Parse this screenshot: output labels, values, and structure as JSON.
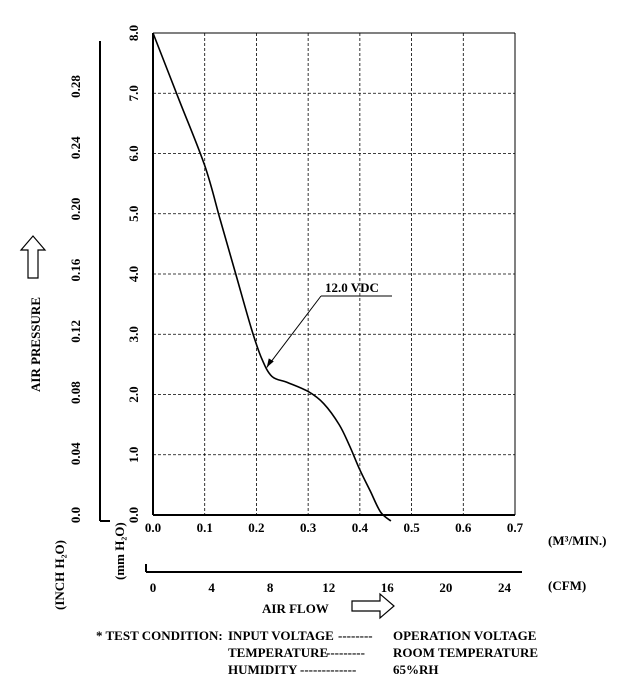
{
  "chart_data": {
    "type": "line",
    "xlabel": "AIR FLOW",
    "x_unit_primary": "(M³/MIN.)",
    "x_unit_secondary": "(CFM)",
    "x_ticks": [
      "0.0",
      "0.1",
      "0.2",
      "0.3",
      "0.4",
      "0.5",
      "0.6",
      "0.7"
    ],
    "x_secondary_ticks": [
      "0",
      "4",
      "8",
      "12",
      "16",
      "20",
      "24"
    ],
    "xlim": [
      0,
      0.7
    ],
    "x_secondary_lim": [
      0,
      24.72
    ],
    "ylabel": "AIR PRESSURE",
    "y_unit_primary": "(mm H₂O)",
    "y_unit_secondary": "(INCH H₂O)",
    "y_ticks": [
      "0.0",
      "1.0",
      "2.0",
      "3.0",
      "4.0",
      "5.0",
      "6.0",
      "7.0",
      "8.0"
    ],
    "y_secondary_ticks": [
      "0.0",
      "0.04",
      "0.08",
      "0.12",
      "0.16",
      "0.20",
      "0.24",
      "0.28"
    ],
    "ylim": [
      0,
      8.0
    ],
    "y_secondary_lim": [
      0,
      0.315
    ],
    "grid": true,
    "series": [
      {
        "name": "12.0 VDC",
        "x": [
          0.0,
          0.05,
          0.1,
          0.13,
          0.16,
          0.19,
          0.21,
          0.23,
          0.26,
          0.3,
          0.33,
          0.36,
          0.38,
          0.4,
          0.42,
          0.44,
          0.46
        ],
        "y": [
          8.0,
          6.9,
          5.8,
          4.9,
          4.0,
          3.1,
          2.6,
          2.3,
          2.2,
          2.05,
          1.85,
          1.5,
          1.15,
          0.75,
          0.4,
          0.05,
          -0.1
        ]
      }
    ],
    "annotation": {
      "text": "12.0 VDC",
      "x": 0.22,
      "y": 2.45
    }
  },
  "test_condition": {
    "prefix": "* TEST CONDITION:",
    "rows": [
      {
        "label": "INPUT VOLTAGE",
        "dashes": "--------",
        "value": "OPERATION VOLTAGE"
      },
      {
        "label": "TEMPERATURE",
        "dashes": "---------",
        "value": "ROOM TEMPERATURE"
      },
      {
        "label": "HUMIDITY",
        "dashes": "-------------",
        "value": "65%RH"
      }
    ]
  }
}
